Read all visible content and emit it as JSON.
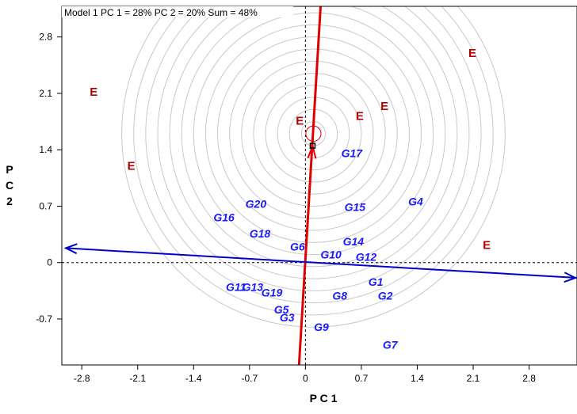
{
  "chart_data": {
    "type": "scatter",
    "title": "Model 1 PC 1 = 28% PC 2 = 20% Sum = 48%",
    "xlabel": "P C 1",
    "ylabel": [
      "P",
      "C",
      "2"
    ],
    "xlim": [
      -3.05,
      3.4
    ],
    "ylim": [
      -1.27,
      3.18
    ],
    "x_ticks": [
      -2.8,
      -2.1,
      -1.4,
      -0.7,
      0,
      0.7,
      1.4,
      2.1,
      2.8
    ],
    "x_tick_labels": [
      "-2.8",
      "-2.1",
      "-1.4",
      "-0.7",
      "0",
      "0.7",
      "1.4",
      "2.1",
      "2.8"
    ],
    "y_ticks": [
      -0.7,
      0,
      0.7,
      1.4,
      2.1,
      2.8
    ],
    "y_tick_labels": [
      "-0.7",
      "0",
      "0.7",
      "1.4",
      "2.1",
      "2.8"
    ],
    "grid": false,
    "concentric_center": [
      0.1,
      1.6
    ],
    "concentric_radii": [
      0.15,
      0.3,
      0.45,
      0.6,
      0.75,
      0.9,
      1.05,
      1.2,
      1.35,
      1.5,
      1.65,
      1.8,
      1.95,
      2.1,
      2.25,
      2.4
    ],
    "origin_marker": [
      0.09,
      1.45
    ],
    "target_circle_radius": 0.095,
    "red_axis": {
      "from": [
        -0.08,
        -1.27
      ],
      "to": [
        0.19,
        3.18
      ],
      "arrow_at": [
        0.09,
        1.45
      ],
      "color": "#e00000"
    },
    "blue_axis": {
      "from": [
        -3.0,
        0.18
      ],
      "to": [
        3.4,
        -0.19
      ],
      "color": "#0000cc"
    },
    "genotypes": [
      {
        "label": "G1",
        "x": 0.88,
        "y": -0.24
      },
      {
        "label": "G2",
        "x": 1.0,
        "y": -0.41
      },
      {
        "label": "G3",
        "x": -0.23,
        "y": -0.68
      },
      {
        "label": "G4",
        "x": 1.38,
        "y": 0.76
      },
      {
        "label": "G5",
        "x": -0.3,
        "y": -0.58
      },
      {
        "label": "G6",
        "x": -0.1,
        "y": 0.2
      },
      {
        "label": "G7",
        "x": 1.06,
        "y": -1.02
      },
      {
        "label": "G8",
        "x": 0.43,
        "y": -0.41
      },
      {
        "label": "G9",
        "x": 0.2,
        "y": -0.8
      },
      {
        "label": "G10",
        "x": 0.32,
        "y": 0.1
      },
      {
        "label": "G11",
        "x": -0.87,
        "y": -0.3
      },
      {
        "label": "G12",
        "x": 0.76,
        "y": 0.07
      },
      {
        "label": "G13",
        "x": -0.66,
        "y": -0.3
      },
      {
        "label": "G14",
        "x": 0.6,
        "y": 0.26
      },
      {
        "label": "G15",
        "x": 0.62,
        "y": 0.69
      },
      {
        "label": "G16",
        "x": -1.02,
        "y": 0.56
      },
      {
        "label": "G17",
        "x": 0.58,
        "y": 1.36
      },
      {
        "label": "G18",
        "x": -0.57,
        "y": 0.36
      },
      {
        "label": "G19",
        "x": -0.42,
        "y": -0.37
      },
      {
        "label": "G20",
        "x": -0.62,
        "y": 0.73
      }
    ],
    "environments": [
      {
        "label": "E",
        "x": -2.65,
        "y": 2.12
      },
      {
        "label": "E",
        "x": -2.18,
        "y": 1.2
      },
      {
        "label": "E",
        "x": -0.07,
        "y": 1.76
      },
      {
        "label": "E",
        "x": 0.68,
        "y": 1.82
      },
      {
        "label": "E",
        "x": 0.99,
        "y": 1.94
      },
      {
        "label": "E",
        "x": 2.09,
        "y": 2.6
      },
      {
        "label": "E",
        "x": 2.27,
        "y": 0.22
      }
    ],
    "colors": {
      "genotype": "#1a1aff",
      "environment": "#b20000",
      "rings": "#c8c8c8"
    }
  }
}
